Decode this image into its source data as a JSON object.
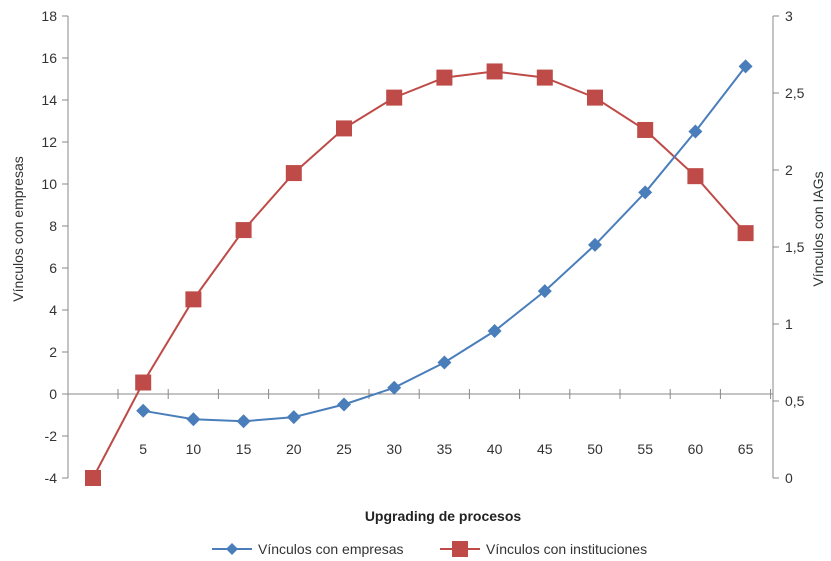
{
  "chart_data": {
    "type": "line",
    "xlabel": "Upgrading de procesos",
    "ylabel": "Vínculos con empresas",
    "y2label": "Vínculos con IAGs",
    "ylim": [
      -4,
      18
    ],
    "y2lim": [
      0,
      3
    ],
    "y_ticks": [
      "-4",
      "-2",
      "0",
      "2",
      "4",
      "6",
      "8",
      "10",
      "12",
      "14",
      "16",
      "18"
    ],
    "y2_ticks": [
      "0",
      "0,5",
      "1",
      "1,5",
      "2",
      "2,5",
      "3"
    ],
    "x_tick_labels": [
      "5",
      "10",
      "15",
      "20",
      "25",
      "30",
      "35",
      "40",
      "45",
      "50",
      "55",
      "60",
      "65"
    ],
    "grid": false,
    "legend_position": "bottom",
    "series": [
      {
        "name": "Vínculos con empresas",
        "axis": "left",
        "color": "#4a7ebb",
        "marker": "diamond",
        "x": [
          5,
          10,
          15,
          20,
          25,
          30,
          35,
          40,
          45,
          50,
          55,
          60,
          65
        ],
        "values": [
          -0.8,
          -1.2,
          -1.3,
          -1.1,
          -0.5,
          0.3,
          1.5,
          3.0,
          4.9,
          7.1,
          9.6,
          12.5,
          15.6
        ]
      },
      {
        "name": "Vínculos con instituciones",
        "axis": "right",
        "color": "#be4b48",
        "marker": "square",
        "x": [
          0,
          5,
          10,
          15,
          20,
          25,
          30,
          35,
          40,
          45,
          50,
          55,
          60,
          65
        ],
        "values": [
          0.0,
          0.62,
          1.16,
          1.61,
          1.98,
          2.27,
          2.47,
          2.6,
          2.64,
          2.6,
          2.47,
          2.26,
          1.96,
          1.59
        ]
      }
    ]
  }
}
